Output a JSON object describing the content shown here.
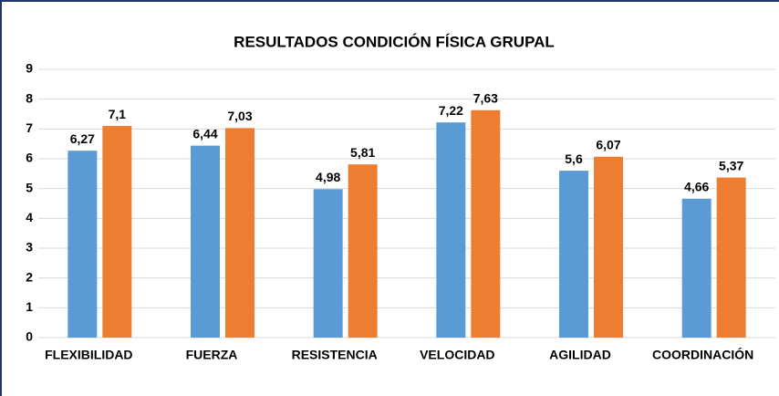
{
  "chart_data": {
    "type": "bar",
    "title": "RESULTADOS CONDICIÓN FÍSICA GRUPAL",
    "categories": [
      "FLEXIBILIDAD",
      "FUERZA",
      "RESISTENCIA",
      "VELOCIDAD",
      "AGILIDAD",
      "COORDINACIÓN"
    ],
    "series": [
      {
        "color": "#5b9bd5",
        "values": [
          6.27,
          6.44,
          4.98,
          7.22,
          5.6,
          4.66
        ],
        "value_labels": [
          "6,27",
          "6,44",
          "4,98",
          "7,22",
          "5,6",
          "4,66"
        ]
      },
      {
        "color": "#ed7d31",
        "values": [
          7.1,
          7.03,
          5.81,
          7.63,
          6.07,
          5.37
        ],
        "value_labels": [
          "7,1",
          "7,03",
          "5,81",
          "7,63",
          "6,07",
          "5,37"
        ]
      }
    ],
    "ylim": [
      0,
      9
    ],
    "yticks": [
      0,
      1,
      2,
      3,
      4,
      5,
      6,
      7,
      8,
      9
    ],
    "grid": true
  }
}
